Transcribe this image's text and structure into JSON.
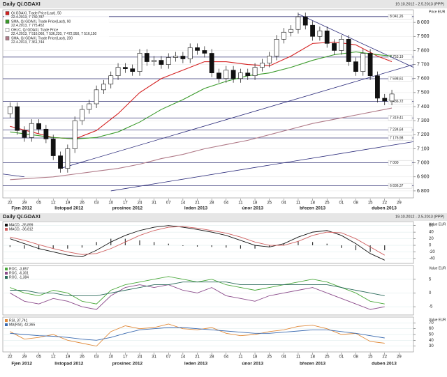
{
  "chart_data": [
    {
      "type": "candlestick",
      "title": "Daily Q/.GDAXI",
      "subtitle": "19.10.2012 - 2.5.2013 (PPP)",
      "axis_label": "Price EUR",
      "x": [
        0,
        1,
        2,
        3,
        4,
        5,
        6,
        7,
        8,
        9,
        10,
        11,
        12,
        13,
        14,
        15,
        16,
        17,
        18,
        19,
        20,
        21,
        22,
        23,
        24,
        25,
        26,
        27,
        28,
        29,
        30,
        31,
        32,
        33,
        34,
        35,
        36,
        37,
        38,
        39,
        40,
        41,
        42,
        43,
        44,
        45,
        46,
        47,
        48,
        49,
        50,
        51,
        52,
        53
      ],
      "open": [
        7350,
        7400,
        7230,
        7180,
        7280,
        7240,
        7170,
        7050,
        6960,
        7100,
        7300,
        7380,
        7420,
        7520,
        7560,
        7620,
        7680,
        7670,
        7650,
        7780,
        7720,
        7730,
        7700,
        7750,
        7760,
        7740,
        7820,
        7800,
        7780,
        7640,
        7600,
        7660,
        7600,
        7640,
        7620,
        7680,
        7710,
        7760,
        7880,
        7930,
        7950,
        8040,
        7980,
        7900,
        7940,
        7850,
        7800,
        7880,
        7720,
        7650,
        7780,
        7620,
        7460,
        7440
      ],
      "high": [
        7430,
        7430,
        7260,
        7310,
        7310,
        7270,
        7200,
        7080,
        7130,
        7330,
        7410,
        7450,
        7550,
        7590,
        7650,
        7710,
        7710,
        7700,
        7810,
        7810,
        7760,
        7760,
        7780,
        7790,
        7790,
        7850,
        7850,
        7830,
        7810,
        7670,
        7690,
        7690,
        7670,
        7670,
        7710,
        7740,
        7790,
        7910,
        7960,
        7980,
        8070,
        8070,
        8010,
        7970,
        7970,
        7880,
        7910,
        7910,
        7750,
        7810,
        7810,
        7650,
        7490,
        7520
      ],
      "low": [
        7320,
        7200,
        7150,
        7150,
        7210,
        7140,
        7020,
        6930,
        6930,
        7070,
        7270,
        7350,
        7390,
        7490,
        7530,
        7590,
        7640,
        7620,
        7620,
        7690,
        7690,
        7670,
        7670,
        7720,
        7710,
        7710,
        7770,
        7750,
        7610,
        7570,
        7570,
        7570,
        7570,
        7590,
        7590,
        7650,
        7680,
        7730,
        7850,
        7900,
        7920,
        7950,
        7870,
        7870,
        7820,
        7770,
        7770,
        7690,
        7620,
        7620,
        7590,
        7430,
        7410,
        7410
      ],
      "close": [
        7400,
        7230,
        7180,
        7280,
        7240,
        7170,
        7050,
        6960,
        7100,
        7300,
        7380,
        7420,
        7520,
        7560,
        7620,
        7680,
        7670,
        7650,
        7780,
        7720,
        7730,
        7700,
        7750,
        7760,
        7740,
        7820,
        7800,
        7780,
        7640,
        7600,
        7660,
        7600,
        7640,
        7620,
        7680,
        7710,
        7760,
        7880,
        7930,
        7950,
        8040,
        7980,
        7900,
        7940,
        7850,
        7800,
        7880,
        7720,
        7650,
        7780,
        7620,
        7460,
        7440,
        7490
      ],
      "candle_name": "OHLC, Q/.GDAXI, Trade Price",
      "candle_legend_value": "22.4.2013, 7 516,060, 7 536,220, 7 472,950, 7 516,150",
      "lines": [
        {
          "name": "Q/.GDAXI, Trade Price(Last), 50",
          "legend_value": "22.4.2013, 7 730,787",
          "color": "#d42020",
          "x": [
            0,
            3,
            6,
            9,
            12,
            15,
            18,
            21,
            24,
            27,
            30,
            33,
            36,
            39,
            42,
            45,
            48,
            51,
            53
          ],
          "values": [
            7260,
            7220,
            7180,
            7170,
            7230,
            7350,
            7500,
            7600,
            7660,
            7720,
            7720,
            7700,
            7690,
            7760,
            7850,
            7860,
            7840,
            7760,
            7720
          ]
        },
        {
          "name": "SMA, Q/.GDAXI, Trade Price(Last), 90",
          "legend_value": "22.4.2013, 7 775,452",
          "color": "#3a9a2a",
          "x": [
            0,
            3,
            6,
            9,
            12,
            15,
            18,
            21,
            24,
            27,
            30,
            33,
            36,
            39,
            42,
            45,
            48,
            51,
            53
          ],
          "values": [
            7220,
            7200,
            7180,
            7170,
            7180,
            7220,
            7290,
            7380,
            7450,
            7530,
            7580,
            7620,
            7640,
            7680,
            7730,
            7770,
            7790,
            7770,
            7760
          ]
        },
        {
          "name": "SMA, Q/.GDAXI, Trade Price(Last), 200",
          "legend_value": "22.4.2013, 7 361,744",
          "color": "#b07a88",
          "x": [
            0,
            3,
            6,
            9,
            12,
            15,
            18,
            21,
            24,
            27,
            30,
            33,
            36,
            39,
            42,
            45,
            48,
            51,
            53
          ],
          "values": [
            6880,
            6890,
            6900,
            6920,
            6940,
            6960,
            6990,
            7030,
            7060,
            7100,
            7130,
            7160,
            7200,
            7240,
            7280,
            7310,
            7340,
            7370,
            7390
          ]
        }
      ],
      "trendlines": [
        {
          "color": "#2a2a7a",
          "x": [
            7,
            56
          ],
          "values": [
            6960,
            7700
          ]
        },
        {
          "color": "#2a2a7a",
          "x": [
            14,
            56
          ],
          "values": [
            6800,
            7150
          ]
        },
        {
          "color": "#2a2a7a",
          "x": [
            40,
            56
          ],
          "values": [
            8060,
            7680
          ]
        },
        {
          "color": "#2a2a7a",
          "x": [
            -1,
            2
          ],
          "values": [
            6920,
            6900
          ]
        }
      ],
      "levels": [
        {
          "value": 8041.26,
          "label": "8 041,26"
        },
        {
          "value": 7753.19,
          "label": "7 753,19"
        },
        {
          "value": 7598.61,
          "label": "7 598,61"
        },
        {
          "value": 7436.72,
          "label": "7 436,72"
        },
        {
          "value": 7319.41,
          "label": "7 319,41"
        },
        {
          "value": 7234.64,
          "label": "7 234,64"
        },
        {
          "value": 7176.98,
          "label": "7 176,98"
        },
        {
          "value": 7000,
          "label": "7 000"
        },
        {
          "value": 6836.37,
          "label": "6 836,37"
        }
      ],
      "xlim": [
        -1,
        56
      ],
      "ylim": [
        6750,
        8090
      ],
      "yticks": [
        {
          "value": 6800,
          "label": "6 800"
        },
        {
          "value": 6900,
          "label": "6 900"
        },
        {
          "value": 7000,
          "label": "7 000"
        },
        {
          "value": 7100,
          "label": "7 100"
        },
        {
          "value": 7200,
          "label": "7 200"
        },
        {
          "value": 7300,
          "label": "7 300"
        },
        {
          "value": 7400,
          "label": "7 400"
        },
        {
          "value": 7500,
          "label": "7 500"
        },
        {
          "value": 7600,
          "label": "7 600"
        },
        {
          "value": 7700,
          "label": "7 700"
        },
        {
          "value": 7800,
          "label": "7 800"
        },
        {
          "value": 7900,
          "label": "7 900"
        },
        {
          "value": 8000,
          "label": "8 000"
        }
      ],
      "xticks": [
        {
          "value": 0,
          "label": "22"
        },
        {
          "value": 2,
          "label": "29"
        },
        {
          "value": 4,
          "label": "05"
        },
        {
          "value": 6,
          "label": "12"
        },
        {
          "value": 8,
          "label": "19"
        },
        {
          "value": 10,
          "label": "26"
        },
        {
          "value": 12,
          "label": "03"
        },
        {
          "value": 14,
          "label": "10"
        },
        {
          "value": 16,
          "label": "17"
        },
        {
          "value": 18,
          "label": "24"
        },
        {
          "value": 20,
          "label": "31"
        },
        {
          "value": 22,
          "label": "07"
        },
        {
          "value": 24,
          "label": "14"
        },
        {
          "value": 26,
          "label": "21"
        },
        {
          "value": 28,
          "label": "28"
        },
        {
          "value": 30,
          "label": "04"
        },
        {
          "value": 32,
          "label": "11"
        },
        {
          "value": 34,
          "label": "18"
        },
        {
          "value": 36,
          "label": "25"
        },
        {
          "value": 38,
          "label": "04"
        },
        {
          "value": 40,
          "label": "11"
        },
        {
          "value": 42,
          "label": "18"
        },
        {
          "value": 44,
          "label": "25"
        },
        {
          "value": 46,
          "label": "01"
        },
        {
          "value": 48,
          "label": "08"
        },
        {
          "value": 50,
          "label": "15"
        },
        {
          "value": 52,
          "label": "22"
        },
        {
          "value": 54,
          "label": "29"
        }
      ],
      "months": [
        {
          "value": 0,
          "label": "Fjen 2012"
        },
        {
          "value": 6,
          "label": "listopad 2012"
        },
        {
          "value": 14,
          "label": "prosinec 2012"
        },
        {
          "value": 24,
          "label": "leden 2013"
        },
        {
          "value": 32,
          "label": "únor 2013"
        },
        {
          "value": 40,
          "label": "březen 2013"
        },
        {
          "value": 50,
          "label": "duben 2013"
        }
      ]
    },
    {
      "type": "macd",
      "title": "Daily Q/.GDAXI",
      "subtitle": "19.10.2012 - 2.5.2013 (PPP)",
      "axis_label": "Value EUR",
      "x": [
        0,
        2,
        4,
        6,
        8,
        10,
        12,
        14,
        16,
        18,
        20,
        22,
        24,
        26,
        28,
        30,
        32,
        34,
        36,
        38,
        40,
        42,
        44,
        46,
        48,
        50,
        52
      ],
      "series": [
        {
          "name": "MACD, -35,899",
          "color": "#111111",
          "values": [
            20,
            5,
            -10,
            -20,
            -30,
            -35,
            -15,
            10,
            30,
            45,
            55,
            60,
            55,
            48,
            40,
            30,
            15,
            0,
            -5,
            5,
            25,
            40,
            45,
            30,
            5,
            -25,
            -45
          ]
        },
        {
          "name": "MACD, -36,812",
          "color": "#d06060",
          "values": [
            25,
            15,
            2,
            -10,
            -20,
            -28,
            -25,
            -10,
            10,
            30,
            45,
            55,
            57,
            52,
            45,
            37,
            25,
            10,
            0,
            0,
            12,
            30,
            40,
            38,
            20,
            -5,
            -30
          ]
        }
      ],
      "histogram": {
        "color": "#333333",
        "values": [
          -5,
          -10,
          -12,
          -10,
          -10,
          -7,
          10,
          20,
          20,
          15,
          10,
          5,
          -2,
          -4,
          -5,
          -7,
          -10,
          -10,
          -5,
          5,
          13,
          10,
          5,
          -8,
          -15,
          -20,
          -15
        ]
      },
      "ylim": [
        -55,
        72
      ],
      "yticks": [
        -40,
        -20,
        0,
        20,
        40,
        60
      ]
    },
    {
      "type": "line",
      "axis_label": "Value EUR",
      "x": [
        0,
        2,
        4,
        6,
        8,
        10,
        12,
        14,
        16,
        18,
        20,
        22,
        24,
        26,
        28,
        30,
        32,
        34,
        36,
        38,
        40,
        42,
        44,
        46,
        48,
        50,
        52
      ],
      "series": [
        {
          "name": "ROC, -3,857",
          "color": "#4aa83a",
          "values": [
            2,
            0,
            -1,
            1,
            0,
            -3,
            -4,
            1,
            3,
            4,
            5,
            6,
            5,
            4,
            5,
            3,
            2,
            1,
            2,
            3,
            4,
            5,
            4,
            2,
            0,
            -3,
            -4
          ]
        },
        {
          "name": "ROC, -6,301",
          "color": "#8a4a8a",
          "values": [
            0,
            -3,
            -4,
            -2,
            -3,
            -5,
            -6,
            -1,
            2,
            3,
            2,
            3,
            1,
            0,
            2,
            -1,
            -2,
            -3,
            -1,
            0,
            1,
            2,
            0,
            -2,
            -4,
            -6,
            -5
          ]
        },
        {
          "name": "ROC, -1,384",
          "color": "#2a6a5a",
          "values": [
            1,
            1,
            0,
            0,
            -1,
            -1,
            -1,
            0,
            1,
            2,
            3,
            3,
            4,
            4,
            4,
            4,
            3,
            3,
            3,
            3,
            3,
            3,
            3,
            2,
            1,
            0,
            -1
          ]
        }
      ],
      "ylim": [
        -8,
        10
      ],
      "yticks": [
        -5,
        0,
        5
      ]
    },
    {
      "type": "line",
      "axis_label": "Value EUR",
      "x": [
        0,
        2,
        4,
        6,
        8,
        10,
        12,
        14,
        16,
        18,
        20,
        22,
        24,
        26,
        28,
        30,
        32,
        34,
        36,
        38,
        40,
        42,
        44,
        46,
        48,
        50,
        52
      ],
      "series": [
        {
          "name": "RSI, 37,741",
          "color": "#e08a3a",
          "values": [
            55,
            42,
            45,
            50,
            40,
            35,
            30,
            55,
            65,
            60,
            62,
            68,
            60,
            58,
            62,
            52,
            48,
            50,
            55,
            58,
            64,
            66,
            60,
            50,
            52,
            38,
            35
          ]
        },
        {
          "name": "MA(RSI), 42,365",
          "color": "#3a6ab0",
          "values": [
            52,
            50,
            48,
            47,
            45,
            42,
            40,
            45,
            52,
            58,
            60,
            62,
            62,
            60,
            58,
            56,
            54,
            52,
            52,
            54,
            56,
            58,
            58,
            55,
            52,
            48,
            44
          ]
        }
      ],
      "ylim": [
        20,
        80
      ],
      "yticks": [
        30,
        40,
        50,
        60,
        70
      ]
    }
  ]
}
